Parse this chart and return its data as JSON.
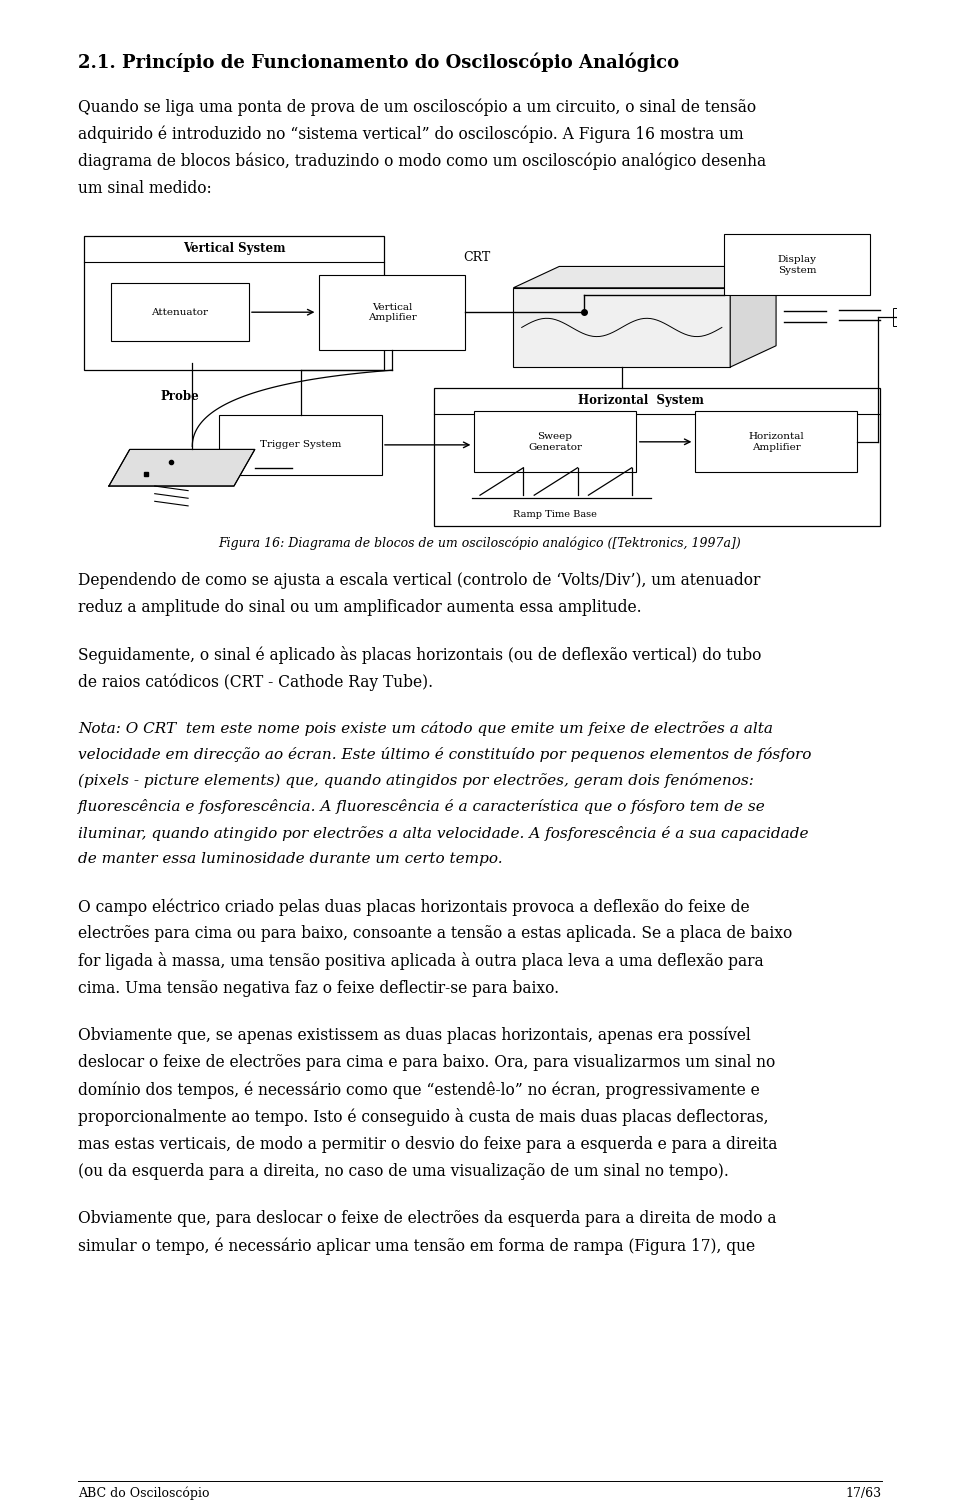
{
  "page_width": 9.6,
  "page_height": 15.11,
  "bg_color": "#ffffff",
  "text_color": "#000000",
  "ml": 0.78,
  "mr": 0.78,
  "title": "2.1. Princípio de Funcionamento do Osciloscópio Analógico",
  "para1_lines": [
    "Quando se liga uma ponta de prova de um osciloscópio a um circuito, o sinal de tensão",
    "adquirido é introduzido no “sistema vertical” do osciloscópio. A Figura 16 mostra um",
    "diagrama de blocos básico, traduzindo o modo como um osciloscópio analógico desenha",
    "um sinal medido:"
  ],
  "fig_caption": "Figura 16: Diagrama de blocos de um osciloscópio analógico ([Tektronics, 1997a])",
  "para2_lines": [
    "Dependendo de como se ajusta a escala vertical (controlo de ‘Volts/Div’), um atenuador",
    "reduz a amplitude do sinal ou um amplificador aumenta essa amplitude."
  ],
  "para3_lines": [
    "Seguidamente, o sinal é aplicado às placas horizontais (ou de deflexão vertical) do tubo",
    "de raios catódicos (CRT - Cathode Ray Tube)."
  ],
  "para4_lines": [
    "Nota: O CRT  tem este nome pois existe um cátodo que emite um feixe de electrões a alta",
    "velocidade em direcção ao écran. Este último é constituído por pequenos elementos de fósforo",
    "(pixels - picture elements) que, quando atingidos por electrões, geram dois fenómenos:",
    "fluorescência e fosforescência. A fluorescência é a característica que o fósforo tem de se",
    "iluminar, quando atingido por electrões a alta velocidade. A fosforescência é a sua capacidade",
    "de manter essa luminosidade durante um certo tempo."
  ],
  "para5_lines": [
    "O campo eléctrico criado pelas duas placas horizontais provoca a deflexão do feixe de",
    "electrões para cima ou para baixo, consoante a tensão a estas aplicada. Se a placa de baixo",
    "for ligada à massa, uma tensão positiva aplicada à outra placa leva a uma deflexão para",
    "cima. Uma tensão negativa faz o feixe deflectir-se para baixo."
  ],
  "para6_lines": [
    "Obviamente que, se apenas existissem as duas placas horizontais, apenas era possível",
    "deslocar o feixe de electrões para cima e para baixo. Ora, para visualizarmos um sinal no",
    "domínio dos tempos, é necessário como que “estendê-lo” no écran, progressivamente e",
    "proporcionalmente ao tempo. Isto é conseguido à custa de mais duas placas deflectoras,",
    "mas estas verticais, de modo a permitir o desvio do feixe para a esquerda e para a direita",
    "(ou da esquerda para a direita, no caso de uma visualização de um sinal no tempo)."
  ],
  "para7_lines": [
    "Obviamente que, para deslocar o feixe de electrões da esquerda para a direita de modo a",
    "simular o tempo, é necessário aplicar uma tensão em forma de rampa (Figura 17), que"
  ],
  "footer_left": "ABC do Osciloscópio",
  "footer_right": "17/63"
}
